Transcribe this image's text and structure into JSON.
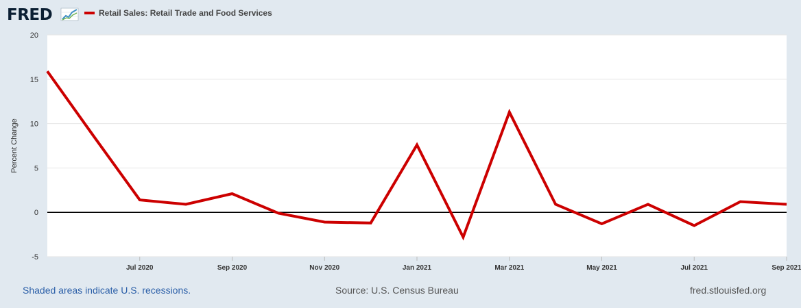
{
  "header": {
    "logo_text": "FRED",
    "legend_label": "Retail Sales: Retail Trade and Food Services",
    "series_color": "#cc0000"
  },
  "footer": {
    "recessions_note": "Shaded areas indicate U.S. recessions.",
    "source": "Source: U.S. Census Bureau",
    "site": "fred.stlouisfed.org"
  },
  "chart_data": {
    "type": "line",
    "title": "",
    "ylabel": "Percent Change",
    "xlabel": "",
    "ylim": [
      -5,
      20
    ],
    "yticks": [
      -5,
      0,
      5,
      10,
      15,
      20
    ],
    "xtick_labels": [
      "Jul 2020",
      "Sep 2020",
      "Nov 2020",
      "Jan 2021",
      "Mar 2021",
      "May 2021",
      "Jul 2021",
      "Sep 2021"
    ],
    "x": [
      "2020-05",
      "2020-06",
      "2020-07",
      "2020-08",
      "2020-09",
      "2020-10",
      "2020-11",
      "2020-12",
      "2021-01",
      "2021-02",
      "2021-03",
      "2021-04",
      "2021-05",
      "2021-06",
      "2021-07",
      "2021-08",
      "2021-09"
    ],
    "series": [
      {
        "name": "Retail Sales: Retail Trade and Food Services",
        "values": [
          15.9,
          8.6,
          1.4,
          0.9,
          2.1,
          -0.1,
          -1.1,
          -1.2,
          7.6,
          -2.8,
          11.3,
          0.9,
          -1.3,
          0.9,
          -1.5,
          1.2,
          0.9
        ]
      }
    ],
    "zero_line": true,
    "grid": true
  }
}
